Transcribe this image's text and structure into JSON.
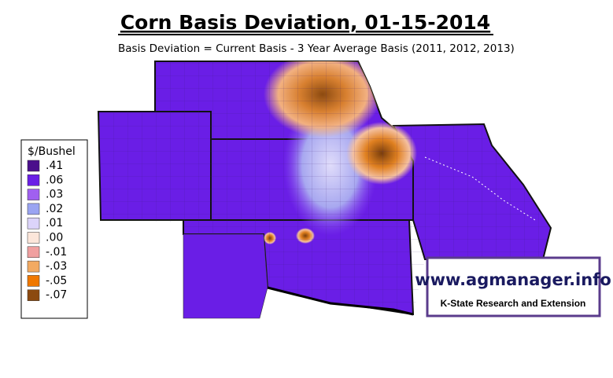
{
  "title": "Corn Basis Deviation, 01-15-2014",
  "subtitle": "Basis Deviation = Current Basis - 3 Year Average Basis (2011, 2012, 2013)",
  "legend": {
    "title": "$/Bushel",
    "items": [
      {
        "label": ".41",
        "color": "#4b0f8c"
      },
      {
        "label": ".06",
        "color": "#6a1ee6"
      },
      {
        "label": ".03",
        "color": "#a060f0"
      },
      {
        "label": ".02",
        "color": "#9aa4f2"
      },
      {
        "label": ".01",
        "color": "#dcd4fa"
      },
      {
        "label": ".00",
        "color": "#fce6da"
      },
      {
        "label": "-.01",
        "color": "#f0a0a0"
      },
      {
        "label": "-.03",
        "color": "#f2aa62"
      },
      {
        "label": "-.05",
        "color": "#f07800"
      },
      {
        "label": "-.07",
        "color": "#8c4a10"
      }
    ]
  },
  "logo": {
    "url": "www.agmanager.info",
    "org": "K-State Research and Extension"
  }
}
